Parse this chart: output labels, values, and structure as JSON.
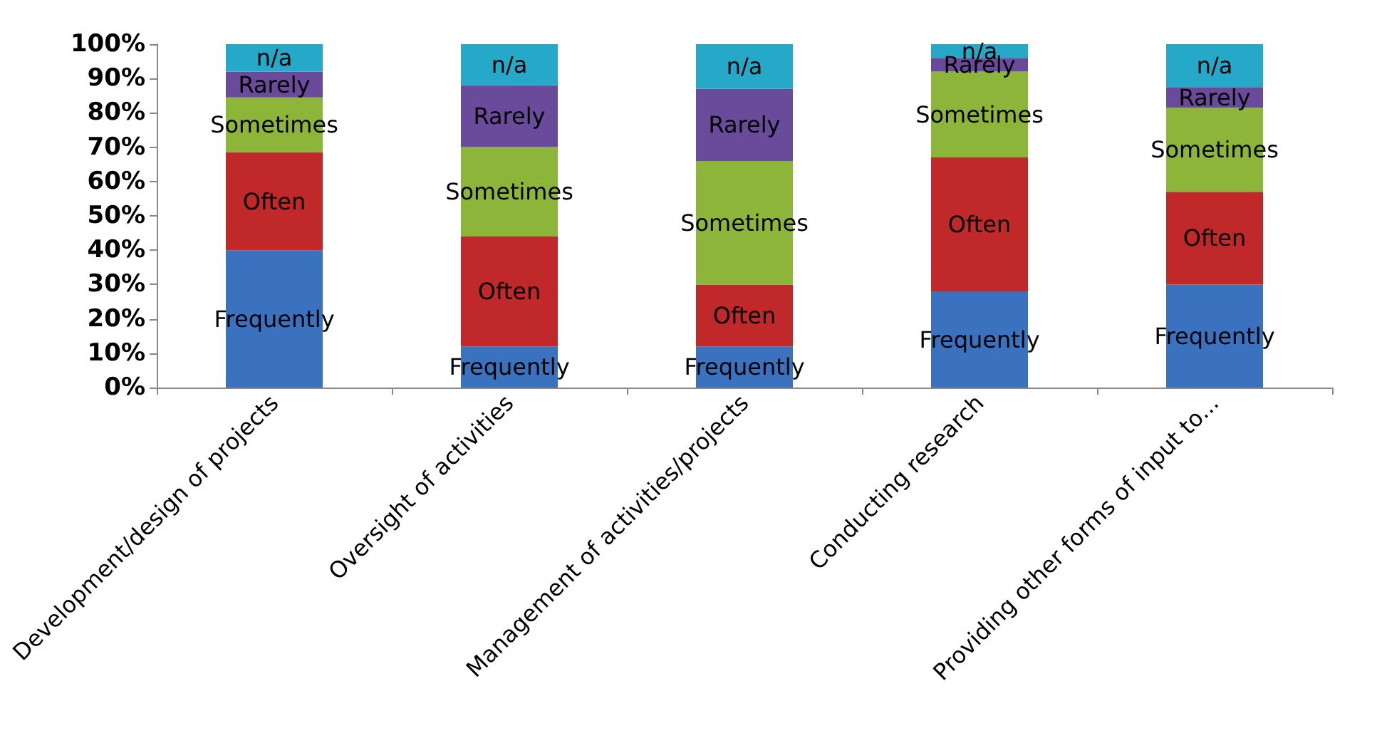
{
  "chart_data": {
    "type": "bar",
    "stacked": true,
    "grid": false,
    "legend": false,
    "categories": [
      "Development/design of projects",
      "Oversight of activities",
      "Management of activities/projects",
      "Conducting research",
      "Providing other forms of input to..."
    ],
    "series": [
      {
        "name": "Frequently",
        "color": "#3a72c0",
        "values": [
          40,
          12,
          12,
          28,
          30
        ]
      },
      {
        "name": "Often",
        "color": "#c0282a",
        "values": [
          28.5,
          32,
          18,
          39,
          27
        ]
      },
      {
        "name": "Sometimes",
        "color": "#8db53a",
        "values": [
          16,
          26,
          36,
          25,
          24.5
        ]
      },
      {
        "name": "Rarely",
        "color": "#6a4a9a",
        "values": [
          7.5,
          18,
          21,
          4,
          6
        ]
      },
      {
        "name": "n/a",
        "color": "#26a9c9",
        "values": [
          8,
          12,
          13,
          4,
          12.5
        ]
      }
    ],
    "ylim": [
      0,
      100
    ],
    "yticks": [
      {
        "value": 0,
        "label": "0%"
      },
      {
        "value": 10,
        "label": "10%"
      },
      {
        "value": 20,
        "label": "20%"
      },
      {
        "value": 30,
        "label": "30%"
      },
      {
        "value": 40,
        "label": "40%"
      },
      {
        "value": 50,
        "label": "50%"
      },
      {
        "value": 60,
        "label": "60%"
      },
      {
        "value": 70,
        "label": "70%"
      },
      {
        "value": 80,
        "label": "80%"
      },
      {
        "value": 90,
        "label": "90%"
      },
      {
        "value": 100,
        "label": "100%"
      }
    ]
  }
}
